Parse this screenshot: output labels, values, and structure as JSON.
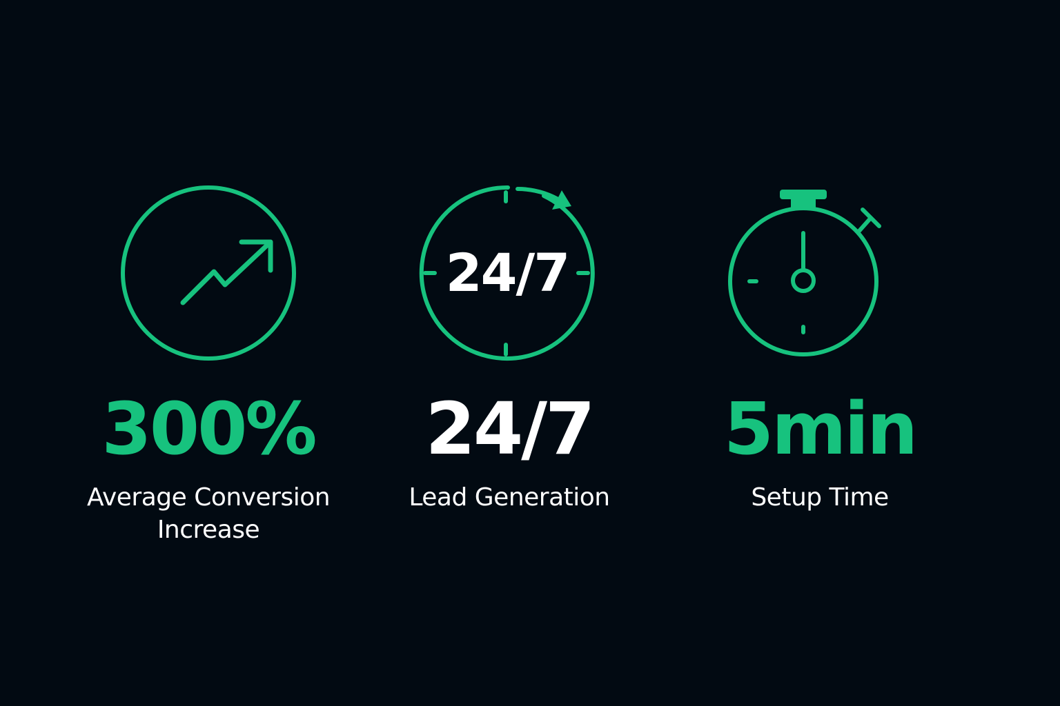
{
  "colors": {
    "background": "#020a12",
    "accent": "#17c27e",
    "text": "#ffffff"
  },
  "stats": [
    {
      "icon": "trending-up-icon",
      "value": "300%",
      "label_line1": "Average Conversion",
      "label_line2": "Increase"
    },
    {
      "icon": "clock-24-7-icon",
      "icon_text": "24/7",
      "value": "24/7",
      "label_line1": "Lead Generation"
    },
    {
      "icon": "stopwatch-icon",
      "value": "5min",
      "label_line1": "Setup Time"
    }
  ]
}
